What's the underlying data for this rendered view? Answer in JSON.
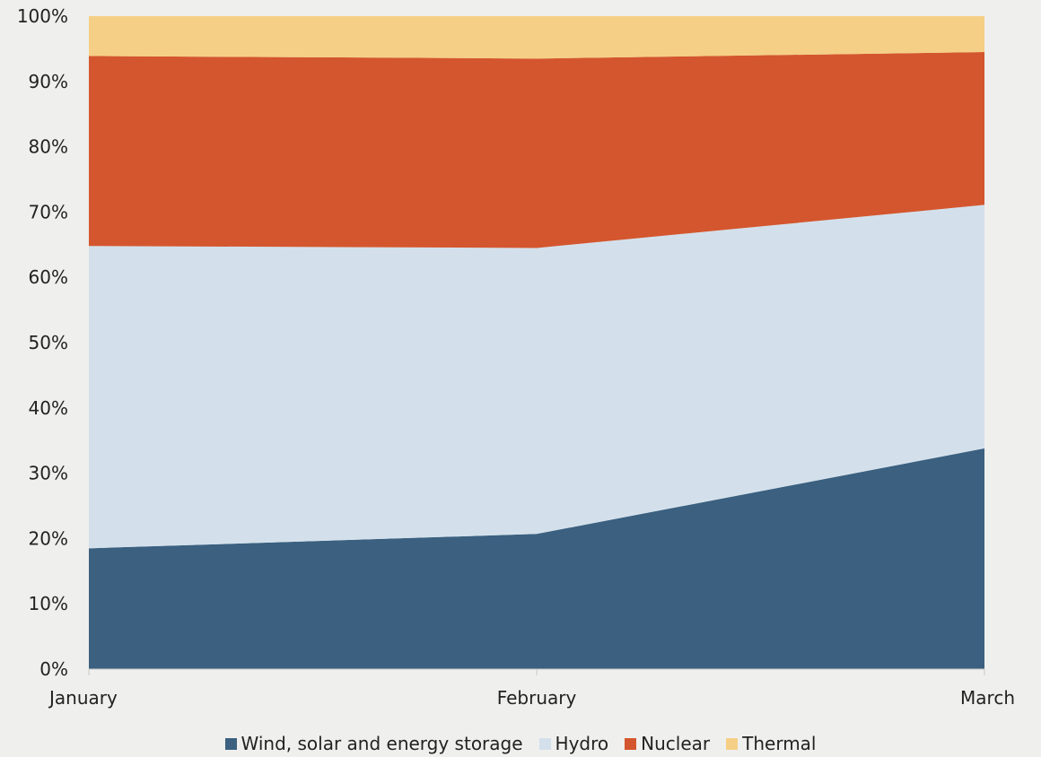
{
  "chart_data": {
    "type": "area",
    "stacked": true,
    "percent": true,
    "categories": [
      "January",
      "February",
      "March"
    ],
    "series": [
      {
        "name": "Wind, solar and energy storage",
        "values": [
          18.5,
          20.7,
          33.8
        ],
        "color": "#3b6080"
      },
      {
        "name": "Hydro",
        "values": [
          46.3,
          43.8,
          37.3
        ],
        "color": "#d3e0eb"
      },
      {
        "name": "Nuclear",
        "values": [
          29.1,
          29.0,
          23.4
        ],
        "color": "#d4562e"
      },
      {
        "name": "Thermal",
        "values": [
          6.1,
          6.5,
          5.5
        ],
        "color": "#f5cf85"
      }
    ],
    "y_ticks": [
      "0%",
      "10%",
      "20%",
      "30%",
      "40%",
      "50%",
      "60%",
      "70%",
      "80%",
      "90%",
      "100%"
    ],
    "ylim": [
      0,
      100
    ],
    "legend": "bottom",
    "grid": false
  }
}
